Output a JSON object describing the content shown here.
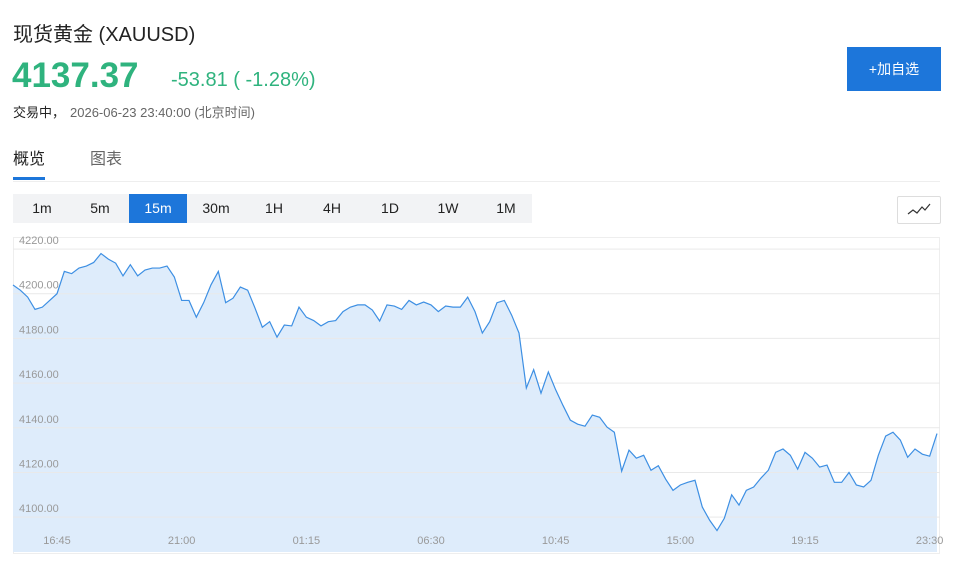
{
  "header": {
    "title": "现货黄金 (XAUUSD)",
    "price": "4137.37",
    "change": "-53.81 ( -1.28%)",
    "status": "交易中，",
    "time": "2026-06-23 23:40:00 (北京时间)"
  },
  "watch_button": "+加自选",
  "tabs": [
    "概览",
    "图表"
  ],
  "active_tab": 0,
  "periods": [
    "1m",
    "5m",
    "15m",
    "30m",
    "1H",
    "4H",
    "1D",
    "1W",
    "1M"
  ],
  "active_period": 2,
  "chart_data": {
    "type": "area",
    "color": "#3d8fe3",
    "fill": "#deecfb",
    "grid": true,
    "ylim": [
      4084.4,
      4225.4
    ],
    "yticks": [
      {
        "value": 4100,
        "label": "4100.00"
      },
      {
        "value": 4120,
        "label": "4120.00"
      },
      {
        "value": 4140,
        "label": "4140.00"
      },
      {
        "value": 4160,
        "label": "4160.00"
      },
      {
        "value": 4180,
        "label": "4180.00"
      },
      {
        "value": 4200,
        "label": "4200.00"
      },
      {
        "value": 4220,
        "label": "4220.00"
      }
    ],
    "categories": [
      null,
      null,
      null,
      null,
      null,
      null,
      "16:45",
      null,
      null,
      null,
      null,
      null,
      null,
      null,
      null,
      null,
      null,
      null,
      null,
      null,
      null,
      null,
      null,
      "21:00",
      null,
      null,
      null,
      null,
      null,
      null,
      null,
      null,
      null,
      null,
      null,
      null,
      null,
      null,
      null,
      null,
      "01:15",
      null,
      null,
      null,
      null,
      null,
      null,
      null,
      null,
      null,
      null,
      null,
      null,
      null,
      null,
      null,
      null,
      "06:30",
      null,
      null,
      null,
      null,
      null,
      null,
      null,
      null,
      null,
      null,
      null,
      null,
      null,
      null,
      null,
      null,
      "10:45",
      null,
      null,
      null,
      null,
      null,
      null,
      null,
      null,
      null,
      null,
      null,
      null,
      null,
      null,
      null,
      null,
      "15:00",
      null,
      null,
      null,
      null,
      null,
      null,
      null,
      null,
      null,
      null,
      null,
      null,
      null,
      null,
      null,
      null,
      "19:15",
      null,
      null,
      null,
      null,
      null,
      null,
      null,
      null,
      null,
      null,
      null,
      null,
      null,
      null,
      null,
      null,
      "23:30",
      null
    ],
    "values": [
      4203.9,
      4201.6,
      4198.5,
      4193,
      4194,
      4197,
      4200,
      4210,
      4209,
      4211.5,
      4212.4,
      4214,
      4218,
      4215.5,
      4213.7,
      4208,
      4213,
      4208,
      4210.6,
      4211.5,
      4211.5,
      4212.4,
      4207.5,
      4197,
      4197,
      4189.5,
      4196,
      4204,
      4210,
      4196,
      4198,
      4203,
      4201.6,
      4193.6,
      4185,
      4187.5,
      4180.6,
      4186,
      4185.6,
      4194,
      4189.5,
      4188,
      4185.6,
      4187.5,
      4188,
      4192,
      4194,
      4195,
      4195,
      4192.7,
      4187.8,
      4195,
      4194.5,
      4193,
      4197,
      4195,
      4196.3,
      4195,
      4192,
      4194.5,
      4194,
      4194,
      4198.5,
      4192,
      4182.4,
      4187.5,
      4196,
      4197,
      4190.4,
      4182.4,
      4157.8,
      4166,
      4155.5,
      4165,
      4157,
      4150,
      4143.4,
      4141.6,
      4140.7,
      4145.7,
      4144.7,
      4140.3,
      4138,
      4120.6,
      4130,
      4126.4,
      4127.7,
      4121,
      4123,
      4117,
      4112,
      4114.4,
      4115.6,
      4116.5,
      4104.5,
      4098.6,
      4094,
      4099.5,
      4110,
      4105.4,
      4112,
      4113.5,
      4117.5,
      4121,
      4129,
      4130.5,
      4127.7,
      4121.5,
      4129,
      4126.4,
      4122.4,
      4123.3,
      4115.6,
      4115.6,
      4120,
      4114.4,
      4113.5,
      4116.5,
      4127.7,
      4136.3,
      4138,
      4134.5,
      4126.8,
      4130.5,
      4128.2,
      4127.3,
      4137.4
    ]
  }
}
